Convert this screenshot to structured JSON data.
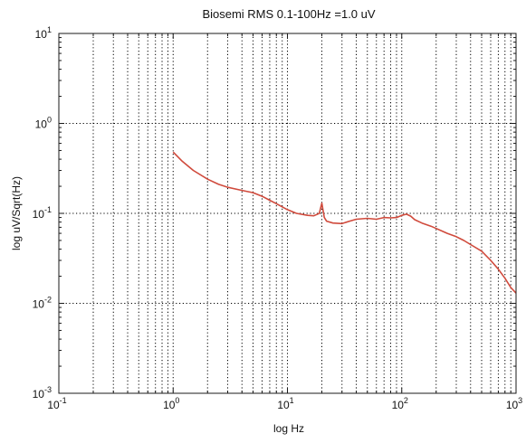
{
  "chart_data": {
    "type": "line",
    "title": "Biosemi RMS 0.1-100Hz =1.0 uV",
    "xlabel": "log Hz",
    "ylabel": "log uV/Sqrt(Hz)",
    "xscale": "log",
    "yscale": "log",
    "xlim": [
      0.1,
      1000
    ],
    "ylim": [
      0.001,
      10
    ],
    "x_ticks": [
      {
        "base": "10",
        "exp": "-1"
      },
      {
        "base": "10",
        "exp": "0"
      },
      {
        "base": "10",
        "exp": "1"
      },
      {
        "base": "10",
        "exp": "2"
      },
      {
        "base": "10",
        "exp": "3"
      }
    ],
    "y_ticks": [
      {
        "base": "10",
        "exp": "1"
      },
      {
        "base": "10",
        "exp": "0"
      },
      {
        "base": "10",
        "exp": "-1"
      },
      {
        "base": "10",
        "exp": "-2"
      },
      {
        "base": "10",
        "exp": "-3"
      }
    ],
    "grid": true,
    "legend": "none",
    "colors": {
      "line": "#d04a3c",
      "axes": "#1a1a1a",
      "grid": "#000000",
      "background": "#ffffff"
    },
    "series": [
      {
        "x": [
          1,
          1.2,
          1.5,
          2,
          2.5,
          3,
          4,
          5,
          6,
          7,
          8,
          10,
          12,
          15,
          17,
          19,
          20,
          21,
          22,
          25,
          30,
          35,
          40,
          50,
          60,
          70,
          80,
          90,
          100,
          110,
          120,
          130,
          150,
          180,
          200,
          250,
          300,
          350,
          400,
          500,
          600,
          700,
          800,
          900,
          1000
        ],
        "y": [
          0.48,
          0.38,
          0.3,
          0.24,
          0.21,
          0.195,
          0.18,
          0.17,
          0.155,
          0.14,
          0.128,
          0.11,
          0.1,
          0.095,
          0.094,
          0.1,
          0.13,
          0.09,
          0.082,
          0.078,
          0.077,
          0.082,
          0.086,
          0.088,
          0.086,
          0.09,
          0.089,
          0.09,
          0.095,
          0.098,
          0.093,
          0.085,
          0.078,
          0.072,
          0.068,
          0.06,
          0.055,
          0.05,
          0.045,
          0.038,
          0.03,
          0.024,
          0.019,
          0.015,
          0.013
        ]
      }
    ]
  }
}
